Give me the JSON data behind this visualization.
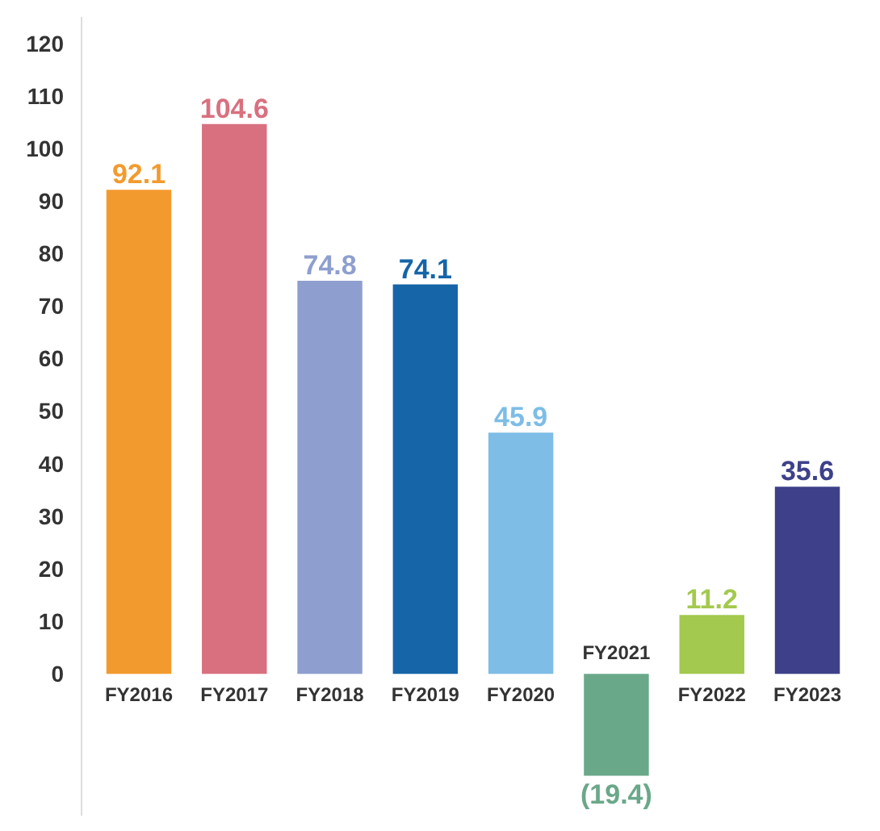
{
  "chart_data": {
    "type": "bar",
    "categories": [
      "FY2016",
      "FY2017",
      "FY2018",
      "FY2019",
      "FY2020",
      "FY2021",
      "FY2022",
      "FY2023"
    ],
    "values": [
      92.1,
      104.6,
      74.8,
      74.1,
      45.9,
      -19.4,
      11.2,
      35.6
    ],
    "colors": [
      "#f39a2e",
      "#d9707f",
      "#8e9fcf",
      "#1565a8",
      "#7dbde6",
      "#6aa88a",
      "#a3c94e",
      "#3e4189"
    ],
    "value_labels": [
      "92.1",
      "104.6",
      "74.8",
      "74.1",
      "45.9",
      "(19.4)",
      "11.2",
      "35.6"
    ],
    "ylim": [
      -27,
      125
    ],
    "yticks": [
      0,
      10,
      20,
      30,
      40,
      50,
      60,
      70,
      80,
      90,
      100,
      110,
      120
    ],
    "grid": false
  }
}
